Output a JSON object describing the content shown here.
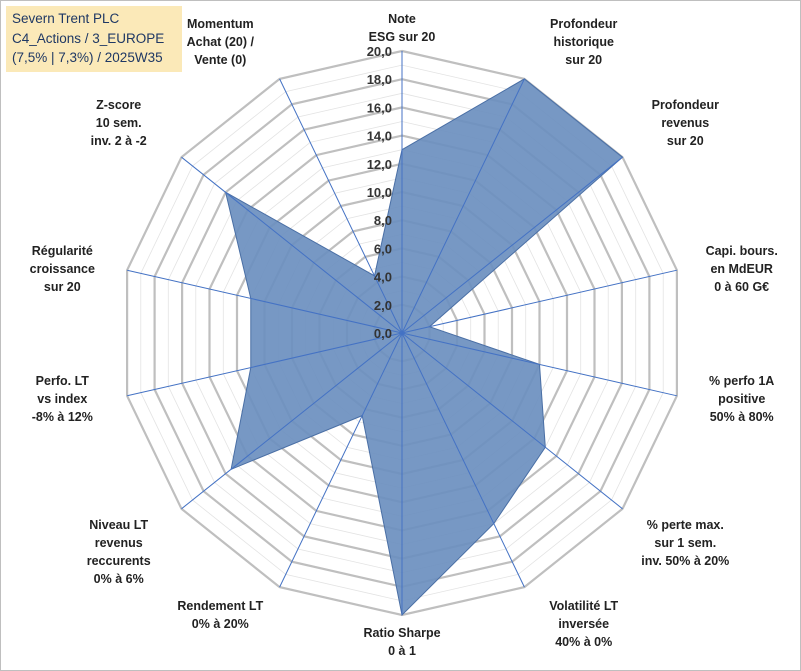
{
  "title_box": {
    "line1": "Severn Trent PLC",
    "line2": "C4_Actions / 3_EUROPE",
    "line3": "(7,5% | 7,3%) / 2025W35",
    "background": "#fbe9b8",
    "color": "#1f3864"
  },
  "chart_data": {
    "type": "radar",
    "title": "",
    "rlim": [
      0,
      20
    ],
    "ticks": [
      "0,0",
      "2,0",
      "4,0",
      "6,0",
      "8,0",
      "10,0",
      "12,0",
      "14,0",
      "16,0",
      "18,0",
      "20,0"
    ],
    "grid": true,
    "legend": "none",
    "fill_color": "#6b8fbf",
    "edge_color": "#4a6fa5",
    "spoke_color": "#4472c4",
    "grid_color": "#bfbfbf",
    "categories": [
      [
        "Note",
        "ESG sur 20"
      ],
      [
        "Profondeur",
        "historique",
        "sur 20"
      ],
      [
        "Profondeur",
        "revenus",
        "sur 20"
      ],
      [
        "Capi. bours.",
        "en MdEUR",
        "0 à 60 G€"
      ],
      [
        "% perfo 1A",
        "positive",
        "50% à 80%"
      ],
      [
        "% perte max.",
        "sur 1 sem.",
        "inv. 50% à 20%"
      ],
      [
        "Volatilité LT",
        "inversée",
        "40% à 0%"
      ],
      [
        "Ratio Sharpe",
        "0 à 1"
      ],
      [
        "Rendement LT",
        "0% à 20%"
      ],
      [
        "Niveau LT",
        "revenus",
        "reccurents",
        "0% à 6%"
      ],
      [
        "Perfo. LT",
        "vs index",
        "-8% à 12%"
      ],
      [
        "Régularité",
        "croissance",
        "sur 20"
      ],
      [
        "Z-score",
        "10 sem.",
        "inv. 2 à -2"
      ],
      [
        "Momentum",
        "Achat (20) /",
        "Vente (0)"
      ]
    ],
    "series": [
      {
        "values": [
          13.0,
          20.0,
          20.0,
          2.0,
          10.0,
          13.0,
          15.0,
          20.0,
          6.5,
          15.5,
          11.0,
          11.0,
          16.0,
          4.5
        ]
      }
    ]
  }
}
